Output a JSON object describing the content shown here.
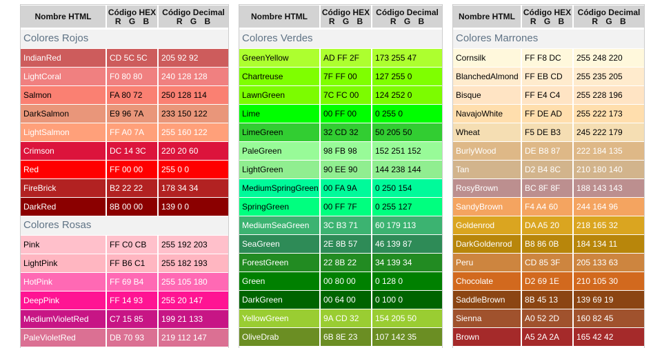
{
  "tables": [
    {
      "header": {
        "name": "Nombre HTML",
        "hex": "Código HEX",
        "hex_sub": "R G B",
        "dec": "Código Decimal",
        "dec_sub": "R G B"
      },
      "sections": [
        {
          "title": "Colores Rojos",
          "rows": [
            [
              "IndianRed",
              "CD 5C 5C",
              "205 92 92",
              "#fff"
            ],
            [
              "LightCoral",
              "F0 80 80",
              "240 128 128",
              "#fff"
            ],
            [
              "Salmon",
              "FA 80 72",
              "250 128 114",
              "#000"
            ],
            [
              "DarkSalmon",
              "E9 96 7A",
              "233 150 122",
              "#000"
            ],
            [
              "LightSalmon",
              "FF A0 7A",
              "255 160 122",
              "#fff"
            ],
            [
              "Crimson",
              "DC 14 3C",
              "220 20 60",
              "#fff"
            ],
            [
              "Red",
              "FF 00 00",
              "255 0 0",
              "#fff"
            ],
            [
              "FireBrick",
              "B2 22 22",
              "178 34 34",
              "#fff"
            ],
            [
              "DarkRed",
              "8B 00 00",
              "139 0 0",
              "#fff"
            ]
          ]
        },
        {
          "title": "Colores Rosas",
          "rows": [
            [
              "Pink",
              "FF C0 CB",
              "255 192 203",
              "#000"
            ],
            [
              "LightPink",
              "FF B6 C1",
              "255 182 193",
              "#000"
            ],
            [
              "HotPink",
              "FF 69 B4",
              "255 105 180",
              "#fff"
            ],
            [
              "DeepPink",
              "FF 14 93",
              "255 20 147",
              "#fff"
            ],
            [
              "MediumVioletRed",
              "C7 15 85",
              "199 21 133",
              "#fff"
            ],
            [
              "PaleVioletRed",
              "DB 70 93",
              "219 112 147",
              "#fff"
            ]
          ]
        }
      ]
    },
    {
      "header": {
        "name": "Nombre HTML",
        "hex": "Código HEX",
        "hex_sub": "R G B",
        "dec": "Código Decimal",
        "dec_sub": "R G B"
      },
      "sections": [
        {
          "title": "Colores Verdes",
          "rows": [
            [
              "GreenYellow",
              "AD FF 2F",
              "173 255 47",
              "#000"
            ],
            [
              "Chartreuse",
              "7F FF 00",
              "127 255 0",
              "#000"
            ],
            [
              "LawnGreen",
              "7C FC 00",
              "124 252 0",
              "#000"
            ],
            [
              "Lime",
              "00 FF 00",
              "0 255 0",
              "#000"
            ],
            [
              "LimeGreen",
              "32 CD 32",
              "50 205 50",
              "#000"
            ],
            [
              "PaleGreen",
              "98 FB 98",
              "152 251 152",
              "#000"
            ],
            [
              "LightGreen",
              "90 EE 90",
              "144 238 144",
              "#000"
            ],
            [
              "MediumSpringGreen",
              "00 FA 9A",
              "0 250 154",
              "#000"
            ],
            [
              "SpringGreen",
              "00 FF 7F",
              "0 255 127",
              "#000"
            ],
            [
              "MediumSeaGreen",
              "3C B3 71",
              "60 179 113",
              "#fff"
            ],
            [
              "SeaGreen",
              "2E 8B 57",
              "46 139 87",
              "#fff"
            ],
            [
              "ForestGreen",
              "22 8B 22",
              "34 139 34",
              "#fff"
            ],
            [
              "Green",
              "00 80 00",
              "0 128 0",
              "#fff"
            ],
            [
              "DarkGreen",
              "00 64 00",
              "0 100 0",
              "#fff"
            ],
            [
              "YellowGreen",
              "9A CD 32",
              "154 205 50",
              "#fff"
            ],
            [
              "OliveDrab",
              "6B 8E 23",
              "107 142 35",
              "#fff"
            ]
          ]
        }
      ]
    },
    {
      "header": {
        "name": "Nombre HTML",
        "hex": "Código HEX",
        "hex_sub": "R G B",
        "dec": "Código Decimal",
        "dec_sub": "R G B"
      },
      "sections": [
        {
          "title": "Colores Marrones",
          "rows": [
            [
              "Cornsilk",
              "FF F8 DC",
              "255 248 220",
              "#000"
            ],
            [
              "BlanchedAlmond",
              "FF EB CD",
              "255 235 205",
              "#000"
            ],
            [
              "Bisque",
              "FF E4 C4",
              "255 228 196",
              "#000"
            ],
            [
              "NavajoWhite",
              "FF DE AD",
              "255 222 173",
              "#000"
            ],
            [
              "Wheat",
              "F5 DE B3",
              "245 222 179",
              "#000"
            ],
            [
              "BurlyWood",
              "DE B8 87",
              "222 184 135",
              "#fff"
            ],
            [
              "Tan",
              "D2 B4 8C",
              "210 180 140",
              "#fff"
            ],
            [
              "RosyBrown",
              "BC 8F 8F",
              "188 143 143",
              "#fff"
            ],
            [
              "SandyBrown",
              "F4 A4 60",
              "244 164 96",
              "#fff"
            ],
            [
              "Goldenrod",
              "DA A5 20",
              "218 165 32",
              "#fff"
            ],
            [
              "DarkGoldenrod",
              "B8 86 0B",
              "184 134 11",
              "#fff"
            ],
            [
              "Peru",
              "CD 85 3F",
              "205 133 63",
              "#fff"
            ],
            [
              "Chocolate",
              "D2 69 1E",
              "210 105 30",
              "#fff"
            ],
            [
              "SaddleBrown",
              "8B 45 13",
              "139 69 19",
              "#fff"
            ],
            [
              "Sienna",
              "A0 52 2D",
              "160 82 45",
              "#fff"
            ],
            [
              "Brown",
              "A5 2A 2A",
              "165 42 42",
              "#fff"
            ]
          ]
        }
      ]
    }
  ]
}
